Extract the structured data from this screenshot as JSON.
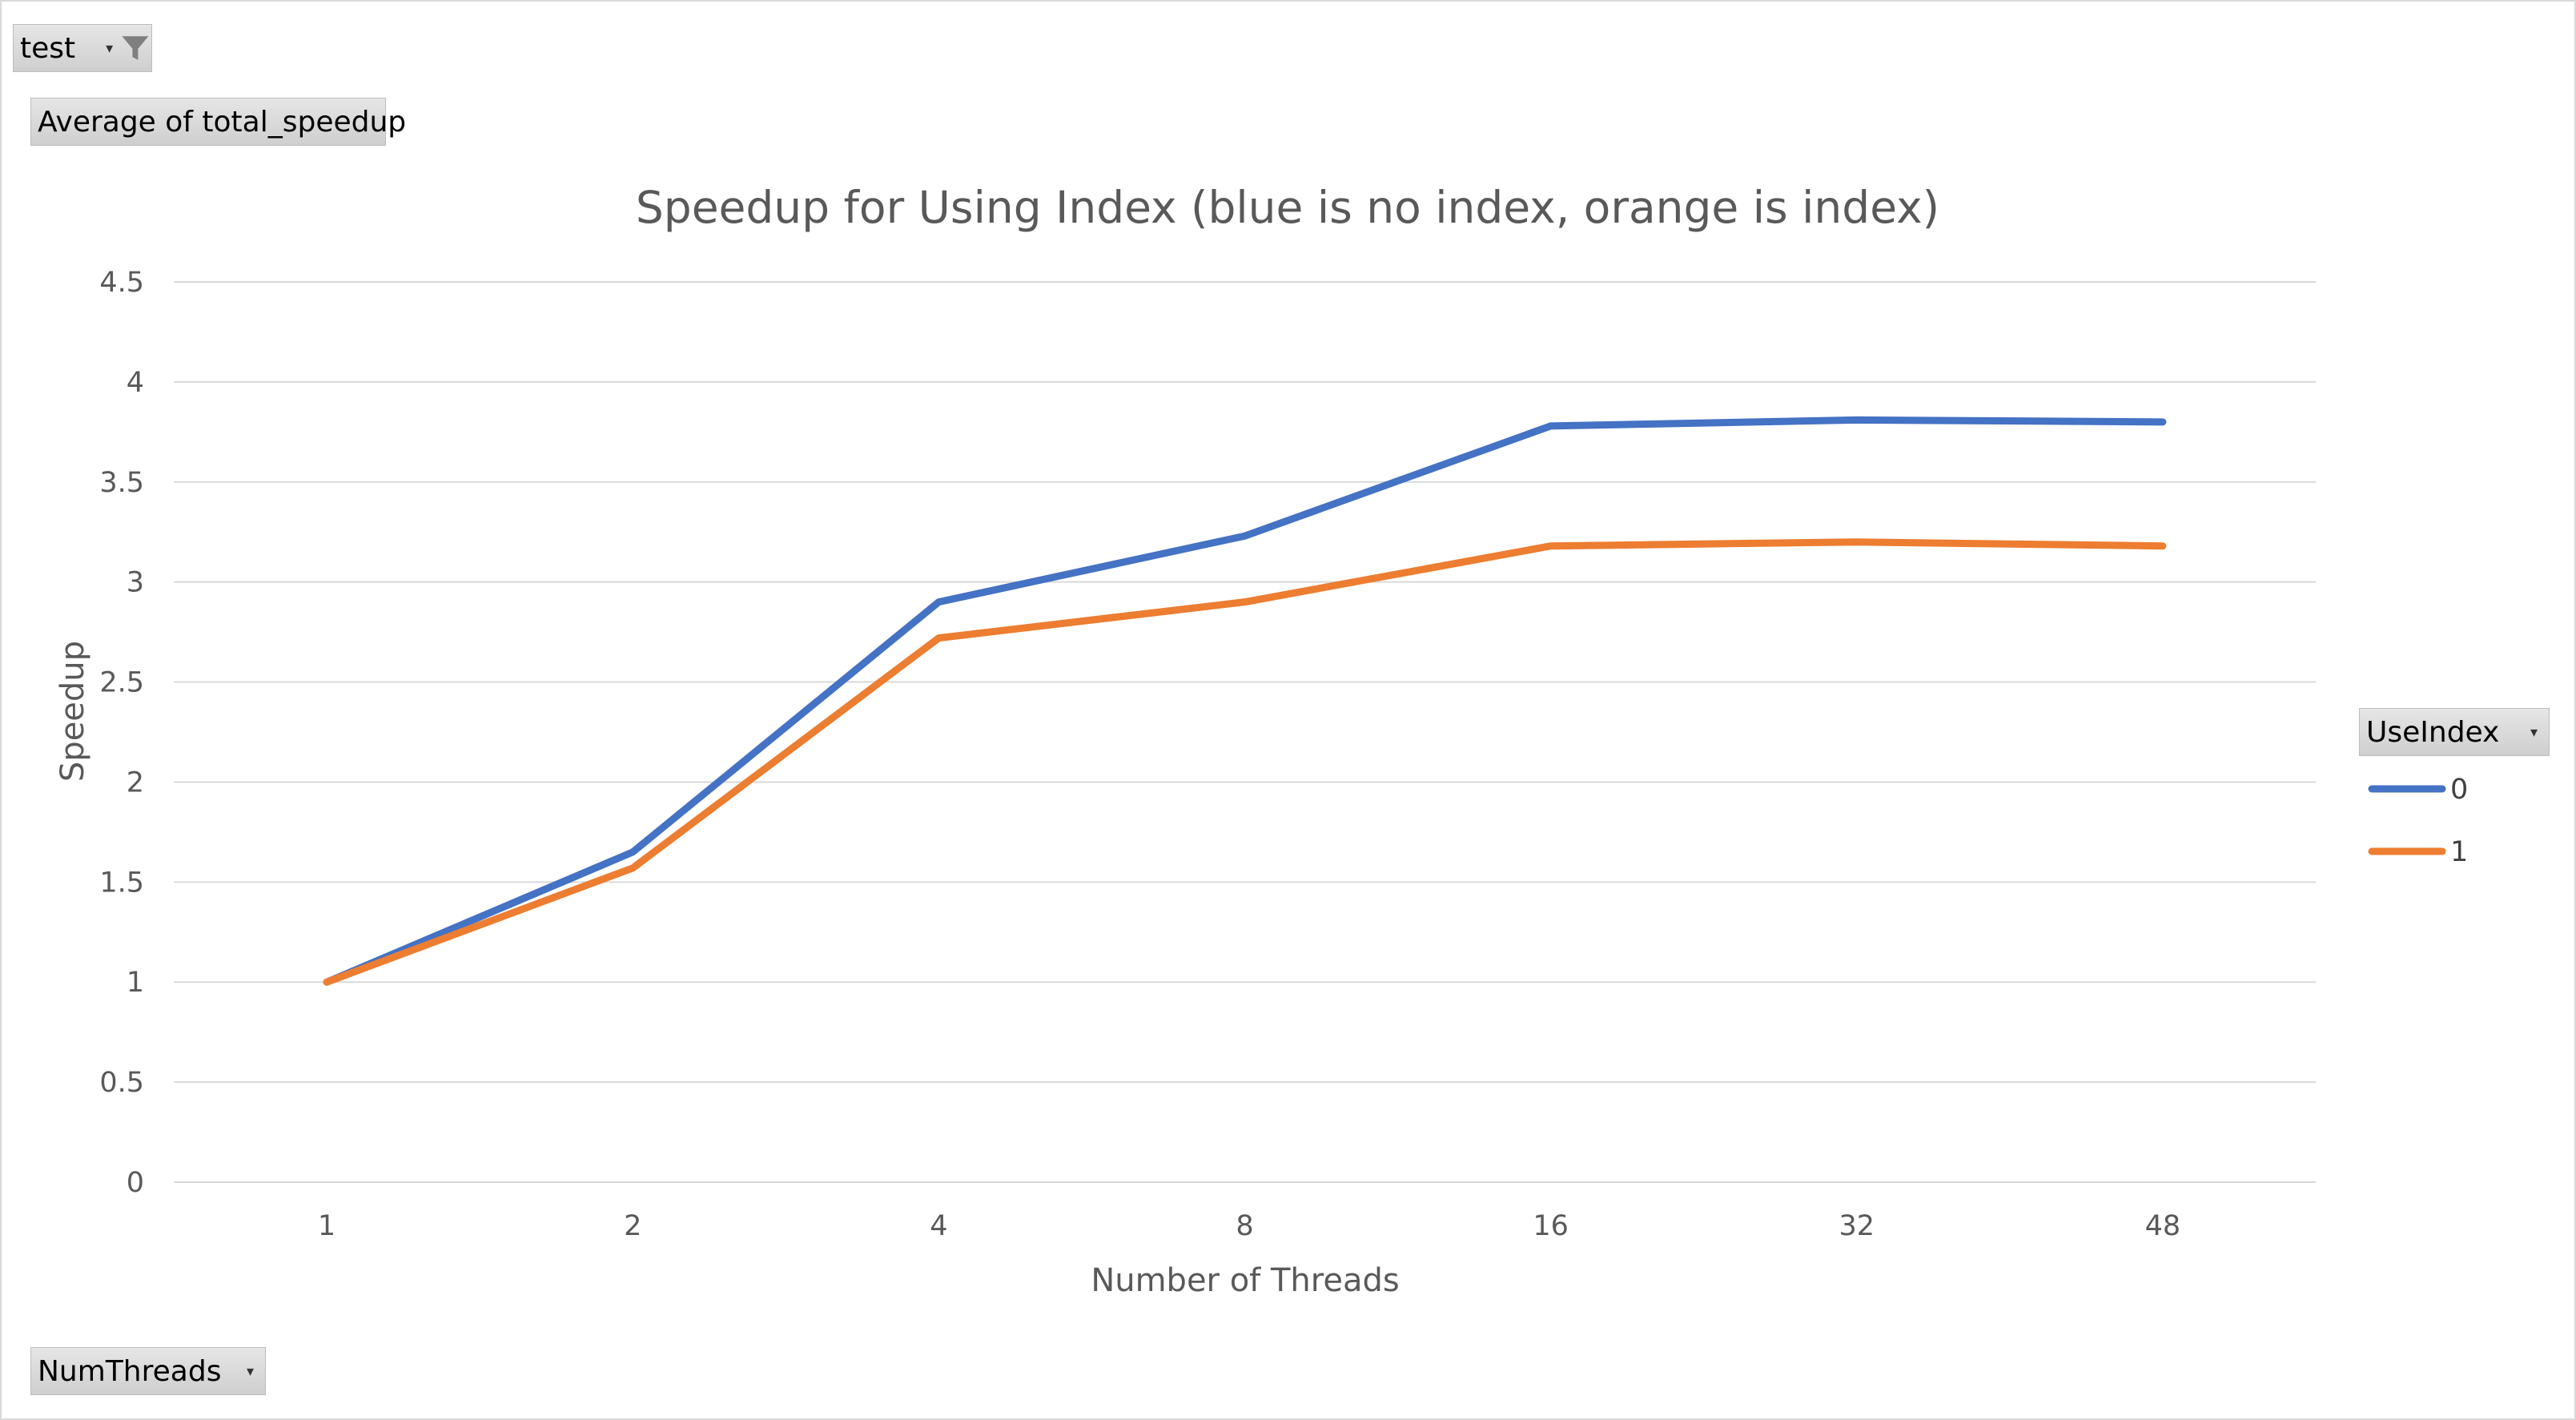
{
  "pivot": {
    "filter_field": "test",
    "values_field": "Average of total_speedup",
    "axis_field": "NumThreads",
    "legend_field": "UseIndex"
  },
  "icons": {
    "filter": "funnel-filter-icon",
    "dropdown": "dropdown-arrow-icon",
    "dropdown_glyph": "▾"
  },
  "chart_data": {
    "type": "line",
    "title": "Speedup for Using Index (blue is no index, orange is index)",
    "xlabel": "Number of Threads",
    "ylabel": "Speedup",
    "categories": [
      "1",
      "2",
      "4",
      "8",
      "16",
      "32",
      "48"
    ],
    "ylim": [
      0,
      4.5
    ],
    "yticks": [
      "0",
      "0.5",
      "1",
      "1.5",
      "2",
      "2.5",
      "3",
      "3.5",
      "4",
      "4.5"
    ],
    "grid": true,
    "legend_position": "right",
    "series": [
      {
        "name": "0",
        "color": "#4472C4",
        "values": [
          1.0,
          1.65,
          2.9,
          3.23,
          3.78,
          3.81,
          3.8
        ]
      },
      {
        "name": "1",
        "color": "#ED7D31",
        "values": [
          1.0,
          1.57,
          2.72,
          2.9,
          3.18,
          3.2,
          3.18
        ]
      }
    ]
  }
}
